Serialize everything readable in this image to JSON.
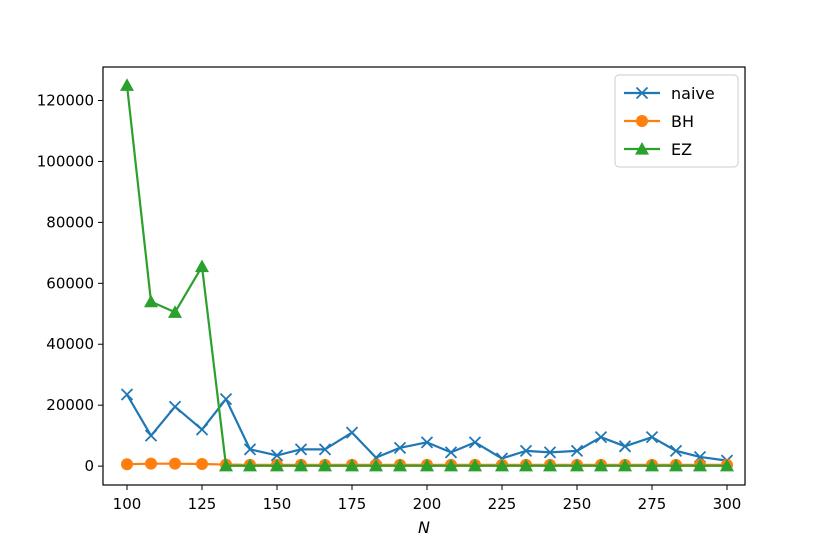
{
  "chart_data": {
    "type": "line",
    "title": "",
    "xlabel": "N",
    "ylabel": "",
    "xlim": [
      92,
      306
    ],
    "ylim": [
      -6200,
      131000
    ],
    "x_ticks": [
      100,
      125,
      150,
      175,
      200,
      225,
      250,
      275,
      300
    ],
    "y_ticks": [
      0,
      20000,
      40000,
      60000,
      80000,
      100000,
      120000
    ],
    "x": [
      100,
      108,
      116,
      125,
      133,
      141,
      150,
      158,
      166,
      175,
      183,
      191,
      200,
      208,
      216,
      225,
      233,
      241,
      250,
      258,
      266,
      275,
      283,
      291,
      300
    ],
    "grid": false,
    "legend_position": "top-right",
    "series": [
      {
        "name": "naive",
        "color": "#1f77b4",
        "marker": "x",
        "values": [
          23500,
          10000,
          19500,
          12000,
          22000,
          5500,
          3500,
          5500,
          5500,
          11000,
          2800,
          6000,
          7800,
          4500,
          7800,
          2500,
          5000,
          4500,
          5000,
          9500,
          6500,
          9500,
          5000,
          3000,
          1800
        ]
      },
      {
        "name": "BH",
        "color": "#ff7f0e",
        "marker": "o",
        "values": [
          600,
          800,
          800,
          700,
          500,
          400,
          400,
          400,
          400,
          400,
          400,
          400,
          400,
          400,
          400,
          400,
          400,
          400,
          400,
          400,
          400,
          400,
          400,
          400,
          400
        ]
      },
      {
        "name": "EZ",
        "color": "#2ca02c",
        "marker": "^",
        "values": [
          125000,
          54000,
          50500,
          65500,
          100,
          100,
          100,
          100,
          100,
          100,
          100,
          100,
          100,
          100,
          100,
          100,
          100,
          100,
          100,
          100,
          100,
          100,
          100,
          100,
          100
        ]
      }
    ]
  }
}
